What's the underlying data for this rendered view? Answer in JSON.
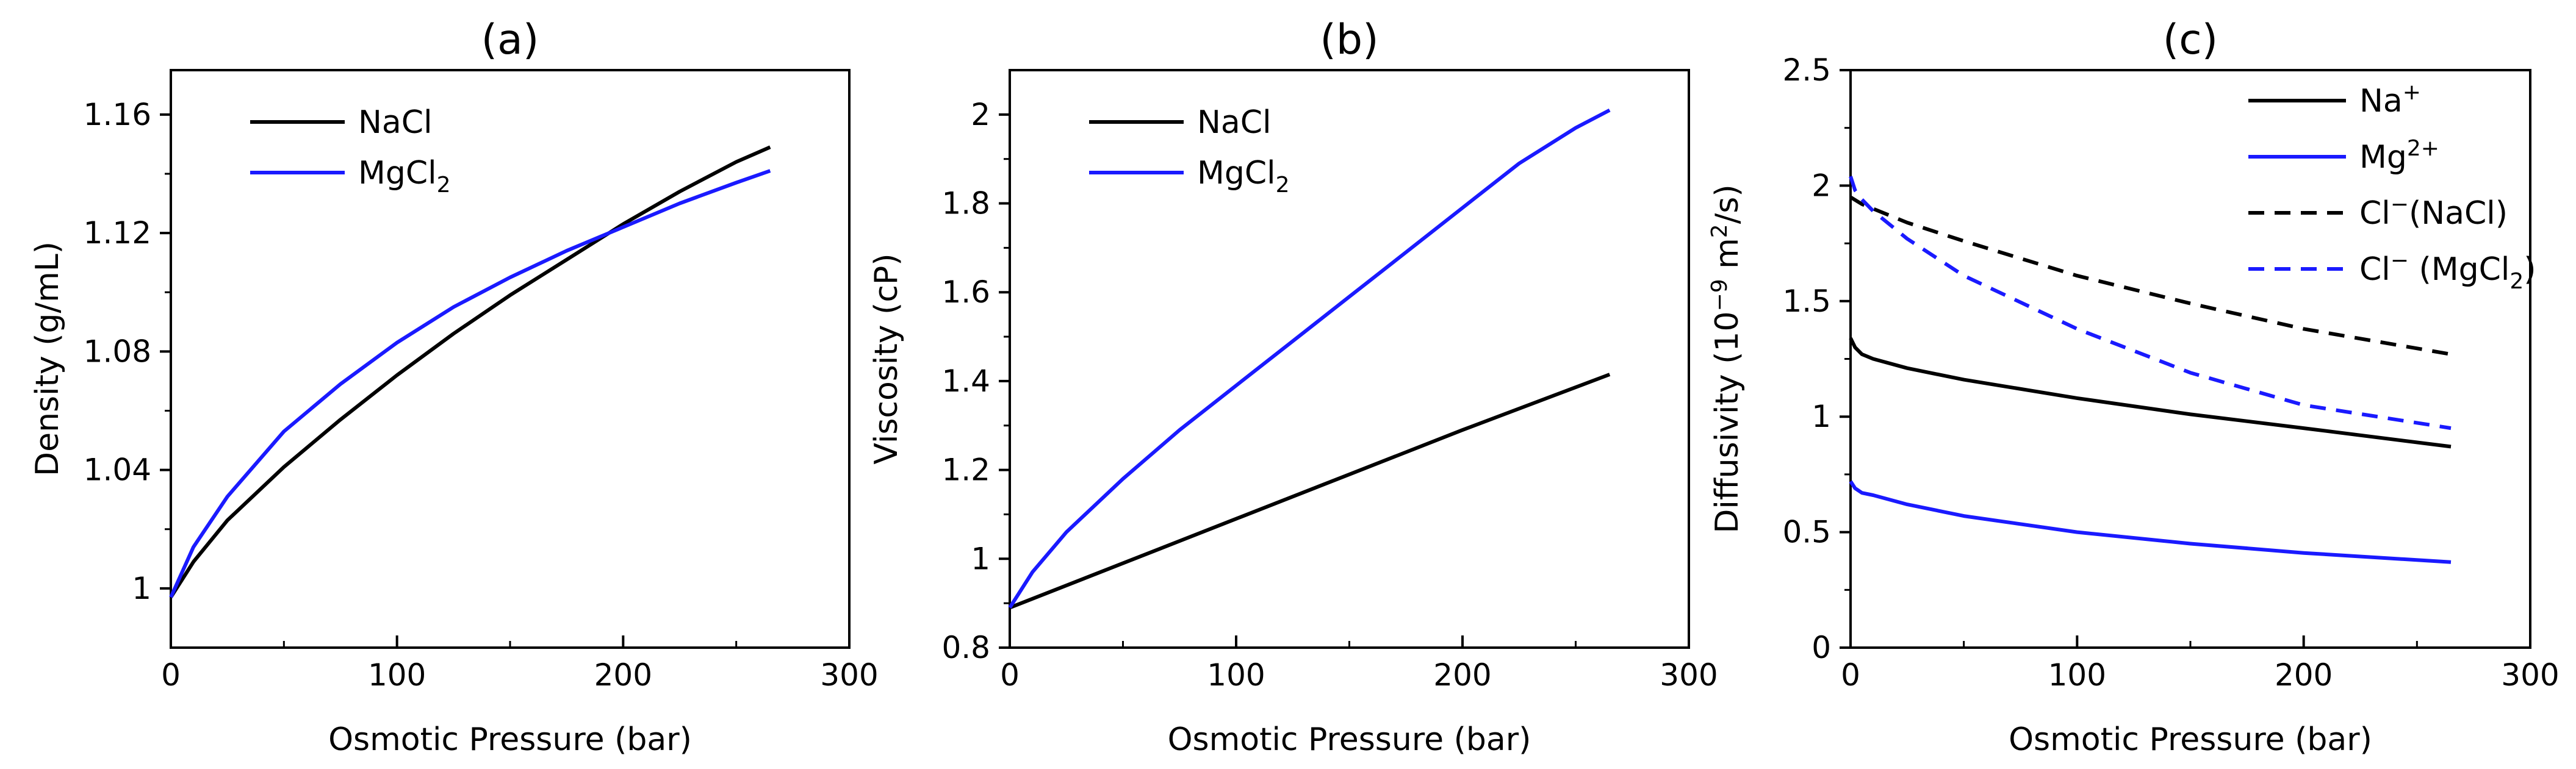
{
  "colors": {
    "black": "#000000",
    "blue": "#1a1aff"
  },
  "chart_data": [
    {
      "type": "line",
      "title": "(a)",
      "xlabel": "Osmotic Pressure (bar)",
      "ylabel": "Density (g/mL)",
      "xlim": [
        0,
        300
      ],
      "ylim": [
        0.98,
        1.175
      ],
      "xticks": [
        0,
        100,
        200,
        300
      ],
      "yticks": [
        1.0,
        1.04,
        1.08,
        1.12,
        1.16
      ],
      "xtick_labels": [
        "0",
        "100",
        "200",
        "300"
      ],
      "ytick_labels": [
        "1",
        "1.04",
        "1.08",
        "1.12",
        "1.16"
      ],
      "legend_position": "top-left",
      "series": [
        {
          "name": "NaCl",
          "legend_text": "NaCl",
          "color": "#000000",
          "dash": "solid",
          "x": [
            0,
            10,
            25,
            50,
            75,
            100,
            125,
            150,
            175,
            200,
            225,
            250,
            265
          ],
          "y": [
            0.997,
            1.009,
            1.023,
            1.041,
            1.057,
            1.072,
            1.086,
            1.099,
            1.111,
            1.123,
            1.134,
            1.144,
            1.149
          ]
        },
        {
          "name": "MgCl2",
          "legend_text": "MgCl",
          "legend_sub": "2",
          "color": "#1a1aff",
          "dash": "solid",
          "x": [
            0,
            10,
            25,
            50,
            75,
            100,
            125,
            150,
            175,
            200,
            225,
            250,
            265
          ],
          "y": [
            0.997,
            1.014,
            1.031,
            1.053,
            1.069,
            1.083,
            1.095,
            1.105,
            1.114,
            1.122,
            1.13,
            1.137,
            1.141
          ]
        }
      ]
    },
    {
      "type": "line",
      "title": "(b)",
      "xlabel": "Osmotic Pressure (bar)",
      "ylabel": "Viscosity (cP)",
      "xlim": [
        0,
        300
      ],
      "ylim": [
        0.8,
        2.1
      ],
      "xticks": [
        0,
        100,
        200,
        300
      ],
      "yticks": [
        0.8,
        1.0,
        1.2,
        1.4,
        1.6,
        1.8,
        2.0
      ],
      "xtick_labels": [
        "0",
        "100",
        "200",
        "300"
      ],
      "ytick_labels": [
        "0.8",
        "1",
        "1.2",
        "1.4",
        "1.6",
        "1.8",
        "2"
      ],
      "legend_position": "top-left",
      "series": [
        {
          "name": "NaCl",
          "legend_text": "NaCl",
          "color": "#000000",
          "dash": "solid",
          "x": [
            0,
            50,
            100,
            150,
            200,
            265
          ],
          "y": [
            0.89,
            0.99,
            1.09,
            1.19,
            1.29,
            1.415
          ]
        },
        {
          "name": "MgCl2",
          "legend_text": "MgCl",
          "legend_sub": "2",
          "color": "#1a1aff",
          "dash": "solid",
          "x": [
            0,
            10,
            25,
            50,
            75,
            100,
            125,
            150,
            175,
            200,
            225,
            250,
            265
          ],
          "y": [
            0.89,
            0.97,
            1.06,
            1.18,
            1.29,
            1.39,
            1.49,
            1.59,
            1.69,
            1.79,
            1.89,
            1.97,
            2.01
          ]
        }
      ]
    },
    {
      "type": "line",
      "title": "(c)",
      "xlabel": "Osmotic Pressure (bar)",
      "ylabel_main": "Diffusivity (10",
      "ylabel_sup1": "−9",
      "ylabel_mid": " m",
      "ylabel_sup2": "2",
      "ylabel_end": "/s)",
      "xlim": [
        0,
        300
      ],
      "ylim": [
        0,
        2.5
      ],
      "xticks": [
        0,
        100,
        200,
        300
      ],
      "yticks": [
        0,
        0.5,
        1.0,
        1.5,
        2.0,
        2.5
      ],
      "xtick_labels": [
        "0",
        "100",
        "200",
        "300"
      ],
      "ytick_labels": [
        "0",
        "0.5",
        "1",
        "1.5",
        "2",
        "2.5"
      ],
      "legend_position": "top-right",
      "series": [
        {
          "name": "Na+",
          "legend_text": "Na",
          "legend_sup": "+",
          "color": "#000000",
          "dash": "solid",
          "x": [
            0,
            2,
            5,
            10,
            25,
            50,
            100,
            150,
            200,
            265
          ],
          "y": [
            1.34,
            1.3,
            1.27,
            1.25,
            1.21,
            1.16,
            1.08,
            1.01,
            0.95,
            0.87
          ]
        },
        {
          "name": "Mg2+",
          "legend_text": "Mg",
          "legend_sup": "2+",
          "color": "#1a1aff",
          "dash": "solid",
          "x": [
            0,
            2,
            5,
            10,
            25,
            50,
            100,
            150,
            200,
            265
          ],
          "y": [
            0.72,
            0.69,
            0.67,
            0.66,
            0.62,
            0.57,
            0.5,
            0.45,
            0.41,
            0.37
          ]
        },
        {
          "name": "Cl- (NaCl)",
          "legend_text": "Cl",
          "legend_sup": "−",
          "legend_after": "(NaCl)",
          "color": "#000000",
          "dash": "dashed",
          "x": [
            0,
            5,
            10,
            25,
            50,
            100,
            150,
            200,
            265
          ],
          "y": [
            1.95,
            1.92,
            1.9,
            1.84,
            1.76,
            1.61,
            1.49,
            1.38,
            1.27
          ]
        },
        {
          "name": "Cl- (MgCl2)",
          "legend_text": "Cl",
          "legend_sup": "−",
          "legend_after": " (MgCl",
          "legend_sub": "2",
          "legend_close": ")",
          "color": "#1a1aff",
          "dash": "dashed",
          "x": [
            0,
            2,
            5,
            10,
            25,
            50,
            100,
            150,
            200,
            265
          ],
          "y": [
            2.04,
            1.98,
            1.94,
            1.89,
            1.77,
            1.61,
            1.38,
            1.19,
            1.05,
            0.95
          ]
        }
      ]
    }
  ]
}
